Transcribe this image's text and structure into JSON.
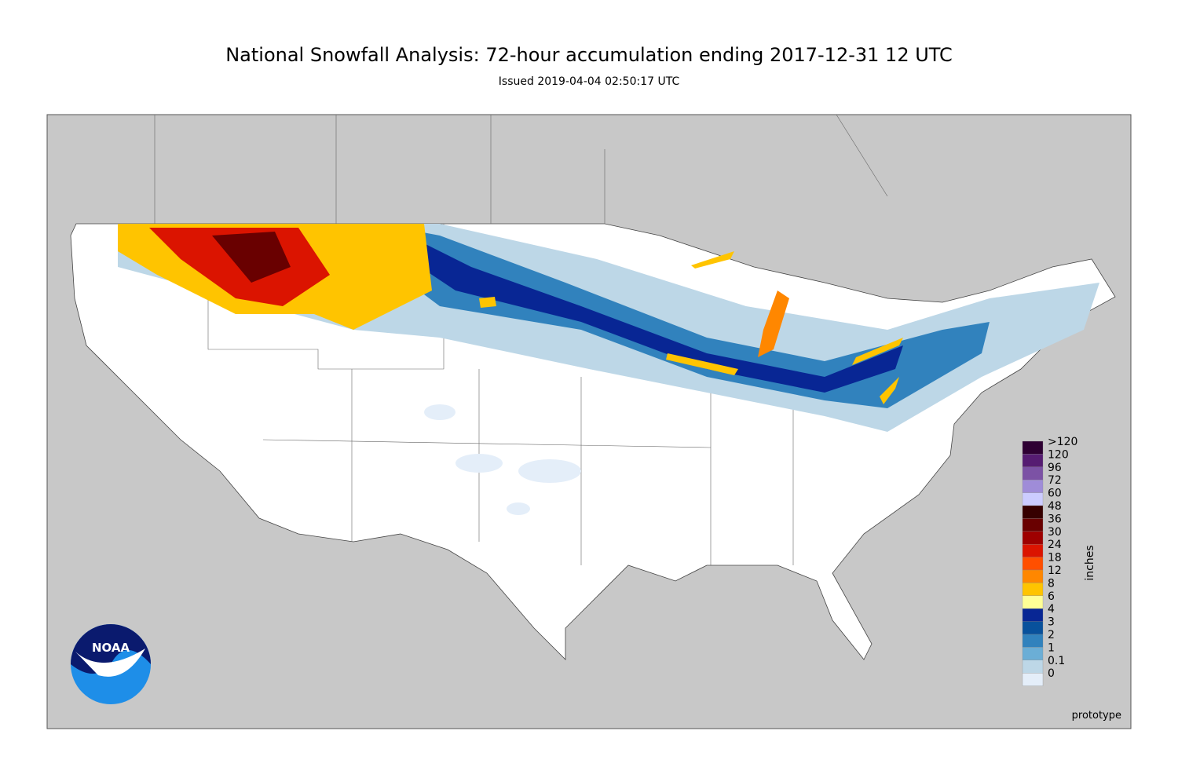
{
  "header": {
    "title": "National Snowfall Analysis: 72-hour accumulation ending 2017-12-31 12 UTC",
    "subtitle": "Issued 2019-04-04 02:50:17 UTC"
  },
  "legend": {
    "unit": "inches",
    "items": [
      {
        "label": ">120",
        "color": "#2e0033"
      },
      {
        "label": "120",
        "color": "#561c72"
      },
      {
        "label": "96",
        "color": "#7c52a5"
      },
      {
        "label": "72",
        "color": "#9f8cd8"
      },
      {
        "label": "60",
        "color": "#ccccff"
      },
      {
        "label": "48",
        "color": "#360000"
      },
      {
        "label": "36",
        "color": "#690000"
      },
      {
        "label": "30",
        "color": "#9e0000"
      },
      {
        "label": "24",
        "color": "#db1400"
      },
      {
        "label": "18",
        "color": "#ff4f00"
      },
      {
        "label": "12",
        "color": "#ff8700"
      },
      {
        "label": "8",
        "color": "#ffc400"
      },
      {
        "label": "6",
        "color": "#ffff96"
      },
      {
        "label": "4",
        "color": "#082694"
      },
      {
        "label": "3",
        "color": "#08519c"
      },
      {
        "label": "2",
        "color": "#3182bd"
      },
      {
        "label": "1",
        "color": "#6baed6"
      },
      {
        "label": "0.1",
        "color": "#bdd7e7"
      },
      {
        "label": "0",
        "color": "#e4eef9"
      }
    ]
  },
  "logo": {
    "text": "NOAA"
  },
  "footer": {
    "note": "prototype"
  }
}
